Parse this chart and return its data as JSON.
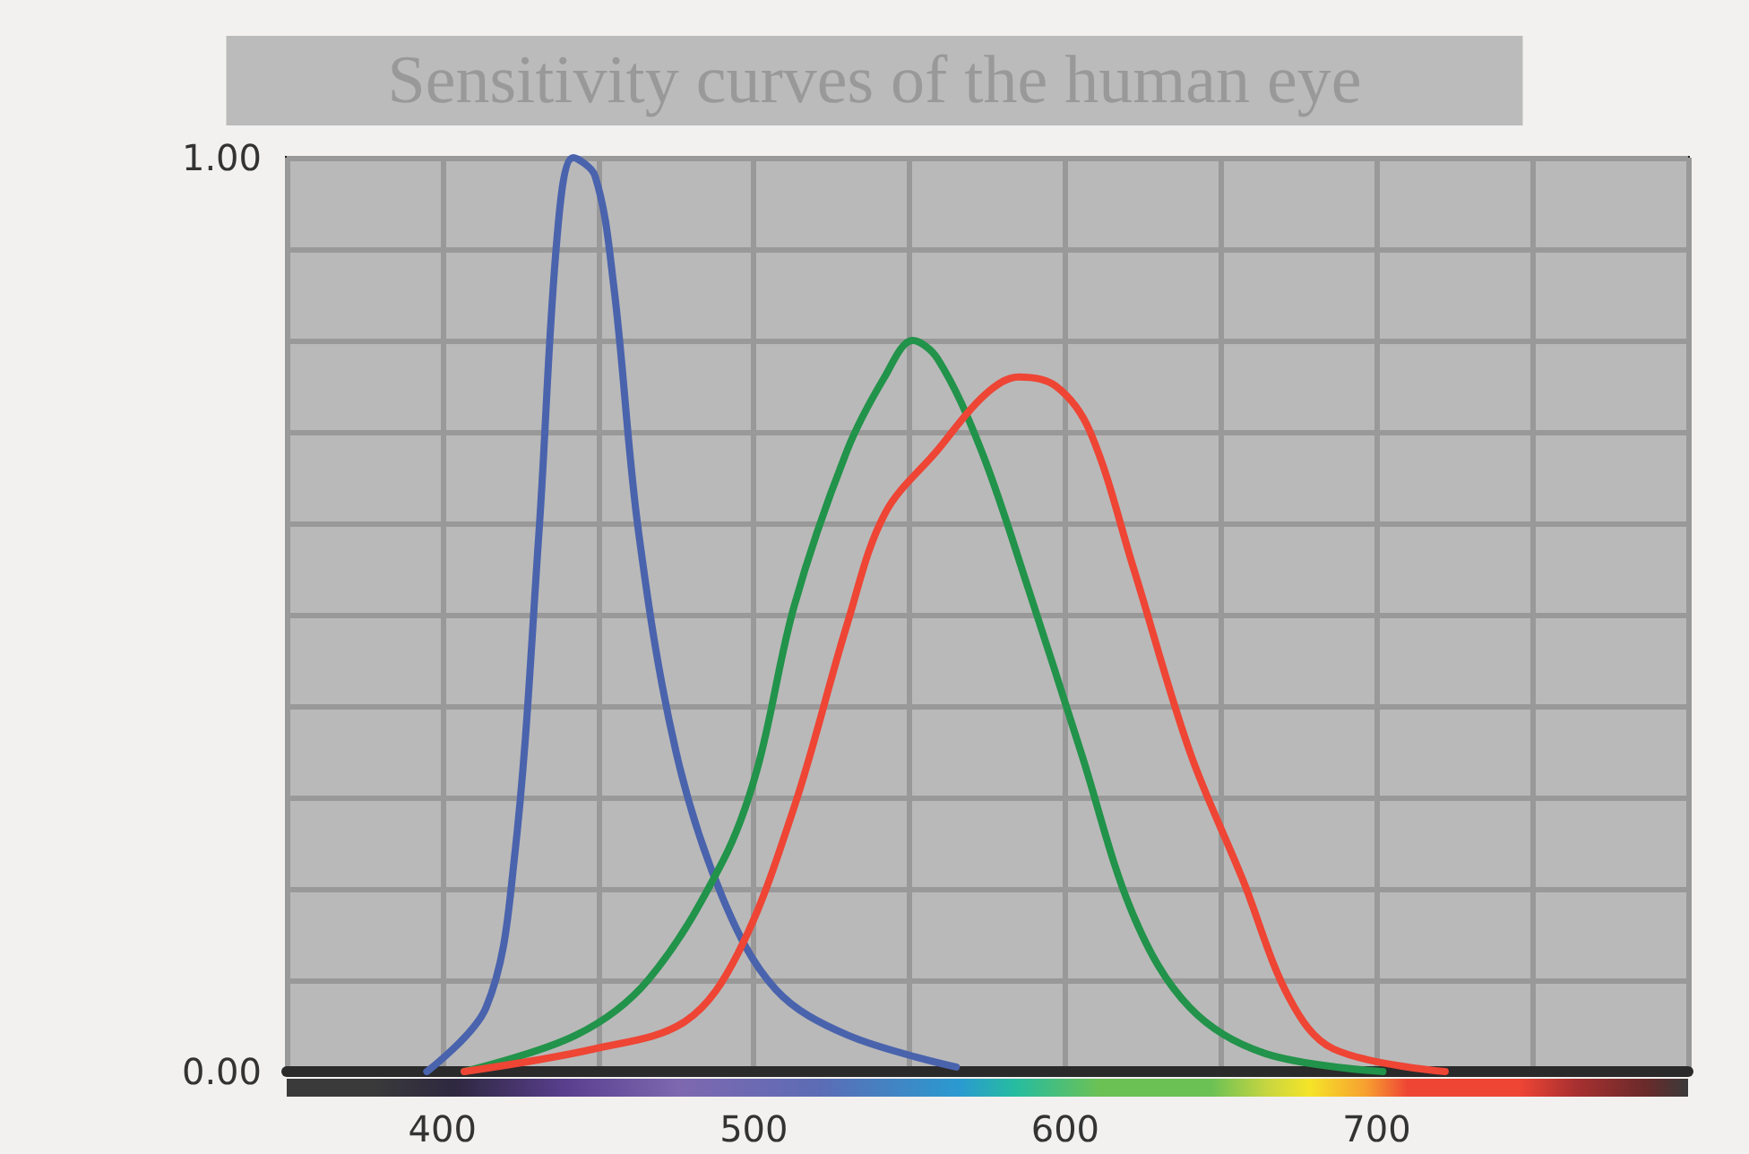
{
  "chart_data": {
    "type": "line",
    "title": "Sensitivity curves of the human eye",
    "xlim": [
      350,
      800
    ],
    "xticks": [
      {
        "value": 350,
        "label": null
      },
      400,
      {
        "value": 450,
        "label": null
      },
      500,
      {
        "value": 550,
        "label": null
      },
      600,
      {
        "value": 650,
        "label": null
      },
      700,
      {
        "value": 750,
        "label": null
      },
      {
        "value": 800,
        "label": null
      }
    ],
    "ylim": [
      0,
      1
    ],
    "yticks": [
      {
        "value": 0,
        "label": "0.00"
      },
      {
        "value": 0.1,
        "label": null
      },
      {
        "value": 0.2,
        "label": null
      },
      {
        "value": 0.3,
        "label": null
      },
      {
        "value": 0.4,
        "label": null
      },
      {
        "value": 0.5,
        "label": null
      },
      {
        "value": 0.6,
        "label": null
      },
      {
        "value": 0.7,
        "label": null
      },
      {
        "value": 0.8,
        "label": null
      },
      {
        "value": 0.9,
        "label": null
      },
      {
        "value": 1,
        "label": "1.00"
      }
    ],
    "grid": true,
    "marker": "none",
    "line_style": "solid",
    "series": [
      {
        "color": "#4a63ad",
        "x": [
          395,
          414,
          423,
          431,
          437,
          442,
          449,
          455,
          463,
          475,
          490,
          507,
          530,
          565
        ],
        "values": [
          0.0,
          0.07,
          0.23,
          0.59,
          0.92,
          1.0,
          0.98,
          0.86,
          0.59,
          0.35,
          0.19,
          0.09,
          0.04,
          0.005
        ]
      },
      {
        "color": "#22934a",
        "x": [
          407,
          443,
          466,
          490,
          501,
          513,
          530,
          542,
          551,
          559,
          573,
          588,
          605,
          622,
          640,
          664,
          702
        ],
        "values": [
          0.0,
          0.04,
          0.1,
          0.23,
          0.33,
          0.51,
          0.68,
          0.76,
          0.8,
          0.78,
          0.68,
          0.53,
          0.35,
          0.17,
          0.07,
          0.02,
          0.0
        ]
      },
      {
        "color": "#ee4535",
        "x": [
          407,
          449,
          478,
          495,
          513,
          530,
          542,
          559,
          574,
          585,
          597,
          608,
          622,
          640,
          657,
          672,
          686,
          722
        ],
        "values": [
          0.0,
          0.025,
          0.055,
          0.13,
          0.29,
          0.49,
          0.61,
          0.68,
          0.74,
          0.76,
          0.75,
          0.7,
          0.55,
          0.35,
          0.21,
          0.08,
          0.025,
          0.0
        ]
      }
    ]
  }
}
